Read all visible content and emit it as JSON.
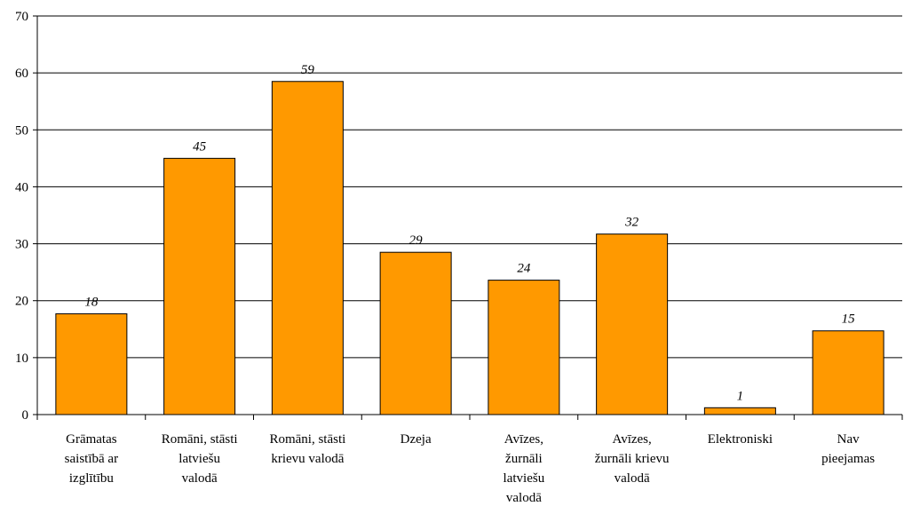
{
  "chart_data": {
    "type": "bar",
    "categories": [
      "Grāmatas\nsaistībā ar\nizglītību",
      "Romāni, stāsti\nlatviešu\nvalodā",
      "Romāni, stāsti\nkrievu valodā",
      "Dzeja",
      "Avīzes,\nžurnāli\nlatviešu\nvalodā",
      "Avīzes,\nžurnāli krievu\nvalodā",
      "Elektroniski",
      "Nav\npieejamas"
    ],
    "values": [
      17.7,
      45,
      58.5,
      28.5,
      23.6,
      31.7,
      1.2,
      14.7
    ],
    "value_labels": [
      "18",
      "45",
      "59",
      "29",
      "24",
      "32",
      "1",
      "15"
    ],
    "color": "#ff9900",
    "ylim": [
      0,
      70
    ],
    "yticks": [
      0,
      10,
      20,
      30,
      40,
      50,
      60,
      70
    ],
    "grid": true
  }
}
